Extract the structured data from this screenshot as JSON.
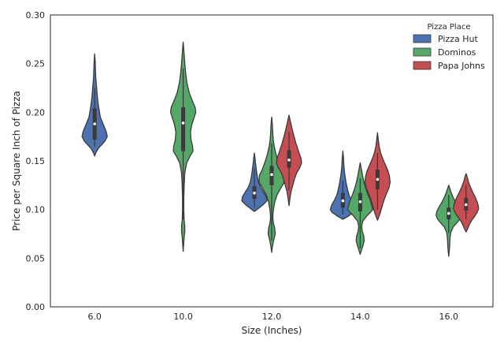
{
  "chart_data": {
    "type": "violin",
    "xlabel": "Size (Inches)",
    "ylabel": "Price per Square Inch of Pizza",
    "ylim": [
      0.0,
      0.3
    ],
    "yticks": [
      "0.00",
      "0.05",
      "0.10",
      "0.15",
      "0.20",
      "0.25",
      "0.30"
    ],
    "categories": [
      "6.0",
      "10.0",
      "12.0",
      "14.0",
      "16.0"
    ],
    "legend": {
      "title": "Pizza Place",
      "placement": "top-right",
      "entries": [
        "Pizza Hut",
        "Dominos",
        "Papa Johns"
      ]
    },
    "series": [
      {
        "name": "Pizza Hut",
        "color": "#4C72B0",
        "violins": [
          {
            "category": "6.0",
            "median": 0.188,
            "q1": 0.172,
            "q3": 0.204,
            "whisker_low": 0.165,
            "whisker_high": 0.225,
            "profile": [
              [
                0.155,
                0.0
              ],
              [
                0.158,
                0.08
              ],
              [
                0.163,
                0.3
              ],
              [
                0.17,
                0.8
              ],
              [
                0.175,
                1.0
              ],
              [
                0.18,
                0.92
              ],
              [
                0.187,
                0.7
              ],
              [
                0.195,
                0.45
              ],
              [
                0.205,
                0.32
              ],
              [
                0.215,
                0.22
              ],
              [
                0.225,
                0.16
              ],
              [
                0.235,
                0.09
              ],
              [
                0.245,
                0.06
              ],
              [
                0.253,
                0.04
              ],
              [
                0.26,
                0.0
              ]
            ]
          },
          {
            "category": "12.0",
            "median": 0.117,
            "q1": 0.111,
            "q3": 0.124,
            "whisker_low": 0.102,
            "whisker_high": 0.142,
            "profile": [
              [
                0.098,
                0.0
              ],
              [
                0.101,
                0.3
              ],
              [
                0.105,
                0.7
              ],
              [
                0.109,
                1.0
              ],
              [
                0.113,
                0.95
              ],
              [
                0.118,
                0.72
              ],
              [
                0.123,
                0.48
              ],
              [
                0.128,
                0.33
              ],
              [
                0.133,
                0.25
              ],
              [
                0.138,
                0.19
              ],
              [
                0.143,
                0.14
              ],
              [
                0.148,
                0.09
              ],
              [
                0.153,
                0.05
              ],
              [
                0.158,
                0.0
              ]
            ]
          },
          {
            "category": "14.0",
            "median": 0.109,
            "q1": 0.102,
            "q3": 0.117,
            "whisker_low": 0.095,
            "whisker_high": 0.13,
            "profile": [
              [
                0.09,
                0.0
              ],
              [
                0.093,
                0.4
              ],
              [
                0.097,
                0.85
              ],
              [
                0.1,
                1.0
              ],
              [
                0.105,
                0.88
              ],
              [
                0.11,
                0.65
              ],
              [
                0.115,
                0.48
              ],
              [
                0.12,
                0.38
              ],
              [
                0.128,
                0.25
              ],
              [
                0.136,
                0.15
              ],
              [
                0.145,
                0.08
              ],
              [
                0.153,
                0.05
              ],
              [
                0.16,
                0.0
              ]
            ]
          },
          {
            "category": "16.0",
            "median": null,
            "profile": []
          }
        ]
      },
      {
        "name": "Dominos",
        "color": "#55A868",
        "violins": [
          {
            "category": "6.0",
            "median": null,
            "profile": []
          },
          {
            "category": "10.0",
            "median": 0.189,
            "q1": 0.16,
            "q3": 0.205,
            "whisker_low": 0.09,
            "whisker_high": 0.245,
            "profile": [
              [
                0.057,
                0.0
              ],
              [
                0.065,
                0.04
              ],
              [
                0.072,
                0.08
              ],
              [
                0.078,
                0.13
              ],
              [
                0.084,
                0.12
              ],
              [
                0.09,
                0.07
              ],
              [
                0.1,
                0.05
              ],
              [
                0.112,
                0.05
              ],
              [
                0.125,
                0.08
              ],
              [
                0.138,
                0.13
              ],
              [
                0.148,
                0.28
              ],
              [
                0.155,
                0.55
              ],
              [
                0.16,
                0.78
              ],
              [
                0.165,
                0.75
              ],
              [
                0.172,
                0.62
              ],
              [
                0.18,
                0.58
              ],
              [
                0.188,
                0.7
              ],
              [
                0.195,
                0.88
              ],
              [
                0.2,
                1.0
              ],
              [
                0.205,
                0.95
              ],
              [
                0.212,
                0.72
              ],
              [
                0.22,
                0.48
              ],
              [
                0.23,
                0.3
              ],
              [
                0.24,
                0.2
              ],
              [
                0.25,
                0.13
              ],
              [
                0.26,
                0.07
              ],
              [
                0.266,
                0.04
              ],
              [
                0.272,
                0.0
              ]
            ]
          },
          {
            "category": "12.0",
            "median": 0.136,
            "q1": 0.125,
            "q3": 0.145,
            "whisker_low": 0.068,
            "whisker_high": 0.168,
            "profile": [
              [
                0.056,
                0.0
              ],
              [
                0.062,
                0.06
              ],
              [
                0.068,
                0.15
              ],
              [
                0.075,
                0.28
              ],
              [
                0.081,
                0.24
              ],
              [
                0.087,
                0.12
              ],
              [
                0.093,
                0.09
              ],
              [
                0.1,
                0.14
              ],
              [
                0.108,
                0.25
              ],
              [
                0.115,
                0.42
              ],
              [
                0.122,
                0.72
              ],
              [
                0.128,
                1.0
              ],
              [
                0.135,
                0.98
              ],
              [
                0.142,
                0.72
              ],
              [
                0.15,
                0.5
              ],
              [
                0.158,
                0.32
              ],
              [
                0.165,
                0.2
              ],
              [
                0.172,
                0.12
              ],
              [
                0.18,
                0.08
              ],
              [
                0.188,
                0.05
              ],
              [
                0.195,
                0.0
              ]
            ]
          },
          {
            "category": "14.0",
            "median": 0.108,
            "q1": 0.098,
            "q3": 0.117,
            "whisker_low": 0.06,
            "whisker_high": 0.132,
            "profile": [
              [
                0.054,
                0.0
              ],
              [
                0.058,
                0.1
              ],
              [
                0.063,
                0.22
              ],
              [
                0.068,
                0.32
              ],
              [
                0.073,
                0.28
              ],
              [
                0.078,
                0.16
              ],
              [
                0.083,
                0.12
              ],
              [
                0.088,
                0.2
              ],
              [
                0.093,
                0.5
              ],
              [
                0.097,
                0.8
              ],
              [
                0.1,
                1.0
              ],
              [
                0.105,
                0.9
              ],
              [
                0.11,
                0.78
              ],
              [
                0.115,
                0.62
              ],
              [
                0.12,
                0.48
              ],
              [
                0.127,
                0.32
              ],
              [
                0.134,
                0.2
              ],
              [
                0.141,
                0.1
              ],
              [
                0.148,
                0.0
              ]
            ]
          },
          {
            "category": "16.0",
            "median": 0.096,
            "q1": 0.09,
            "q3": 0.102,
            "whisker_low": 0.076,
            "whisker_high": 0.115,
            "profile": [
              [
                0.052,
                0.0
              ],
              [
                0.058,
                0.05
              ],
              [
                0.064,
                0.08
              ],
              [
                0.07,
                0.1
              ],
              [
                0.076,
                0.15
              ],
              [
                0.082,
                0.35
              ],
              [
                0.086,
                0.62
              ],
              [
                0.09,
                0.88
              ],
              [
                0.094,
                1.0
              ],
              [
                0.098,
                0.95
              ],
              [
                0.103,
                0.75
              ],
              [
                0.108,
                0.52
              ],
              [
                0.113,
                0.33
              ],
              [
                0.118,
                0.18
              ],
              [
                0.122,
                0.08
              ],
              [
                0.125,
                0.0
              ]
            ]
          }
        ]
      },
      {
        "name": "Papa Johns",
        "color": "#C44E52",
        "violins": [
          {
            "category": "6.0",
            "median": null,
            "profile": []
          },
          {
            "category": "10.0",
            "median": null,
            "profile": []
          },
          {
            "category": "12.0",
            "median": 0.151,
            "q1": 0.143,
            "q3": 0.161,
            "whisker_low": 0.12,
            "whisker_high": 0.18,
            "profile": [
              [
                0.104,
                0.0
              ],
              [
                0.11,
                0.06
              ],
              [
                0.118,
                0.15
              ],
              [
                0.125,
                0.3
              ],
              [
                0.132,
                0.45
              ],
              [
                0.138,
                0.62
              ],
              [
                0.143,
                0.85
              ],
              [
                0.148,
                1.0
              ],
              [
                0.153,
                0.95
              ],
              [
                0.158,
                0.8
              ],
              [
                0.163,
                0.68
              ],
              [
                0.168,
                0.55
              ],
              [
                0.175,
                0.4
              ],
              [
                0.182,
                0.26
              ],
              [
                0.19,
                0.12
              ],
              [
                0.197,
                0.0
              ]
            ]
          },
          {
            "category": "14.0",
            "median": 0.131,
            "q1": 0.121,
            "q3": 0.141,
            "whisker_low": 0.1,
            "whisker_high": 0.158,
            "profile": [
              [
                0.089,
                0.0
              ],
              [
                0.093,
                0.12
              ],
              [
                0.098,
                0.25
              ],
              [
                0.104,
                0.38
              ],
              [
                0.11,
                0.52
              ],
              [
                0.116,
                0.7
              ],
              [
                0.122,
                0.9
              ],
              [
                0.128,
                1.0
              ],
              [
                0.134,
                0.95
              ],
              [
                0.14,
                0.82
              ],
              [
                0.146,
                0.62
              ],
              [
                0.152,
                0.42
              ],
              [
                0.158,
                0.25
              ],
              [
                0.165,
                0.13
              ],
              [
                0.172,
                0.06
              ],
              [
                0.179,
                0.0
              ]
            ]
          },
          {
            "category": "16.0",
            "median": 0.105,
            "q1": 0.099,
            "q3": 0.112,
            "whisker_low": 0.09,
            "whisker_high": 0.125,
            "profile": [
              [
                0.077,
                0.0
              ],
              [
                0.081,
                0.15
              ],
              [
                0.085,
                0.28
              ],
              [
                0.089,
                0.45
              ],
              [
                0.093,
                0.68
              ],
              [
                0.097,
                0.88
              ],
              [
                0.101,
                1.0
              ],
              [
                0.105,
                0.95
              ],
              [
                0.109,
                0.85
              ],
              [
                0.113,
                0.72
              ],
              [
                0.118,
                0.52
              ],
              [
                0.123,
                0.35
              ],
              [
                0.128,
                0.2
              ],
              [
                0.133,
                0.1
              ],
              [
                0.137,
                0.0
              ]
            ]
          }
        ]
      }
    ]
  }
}
